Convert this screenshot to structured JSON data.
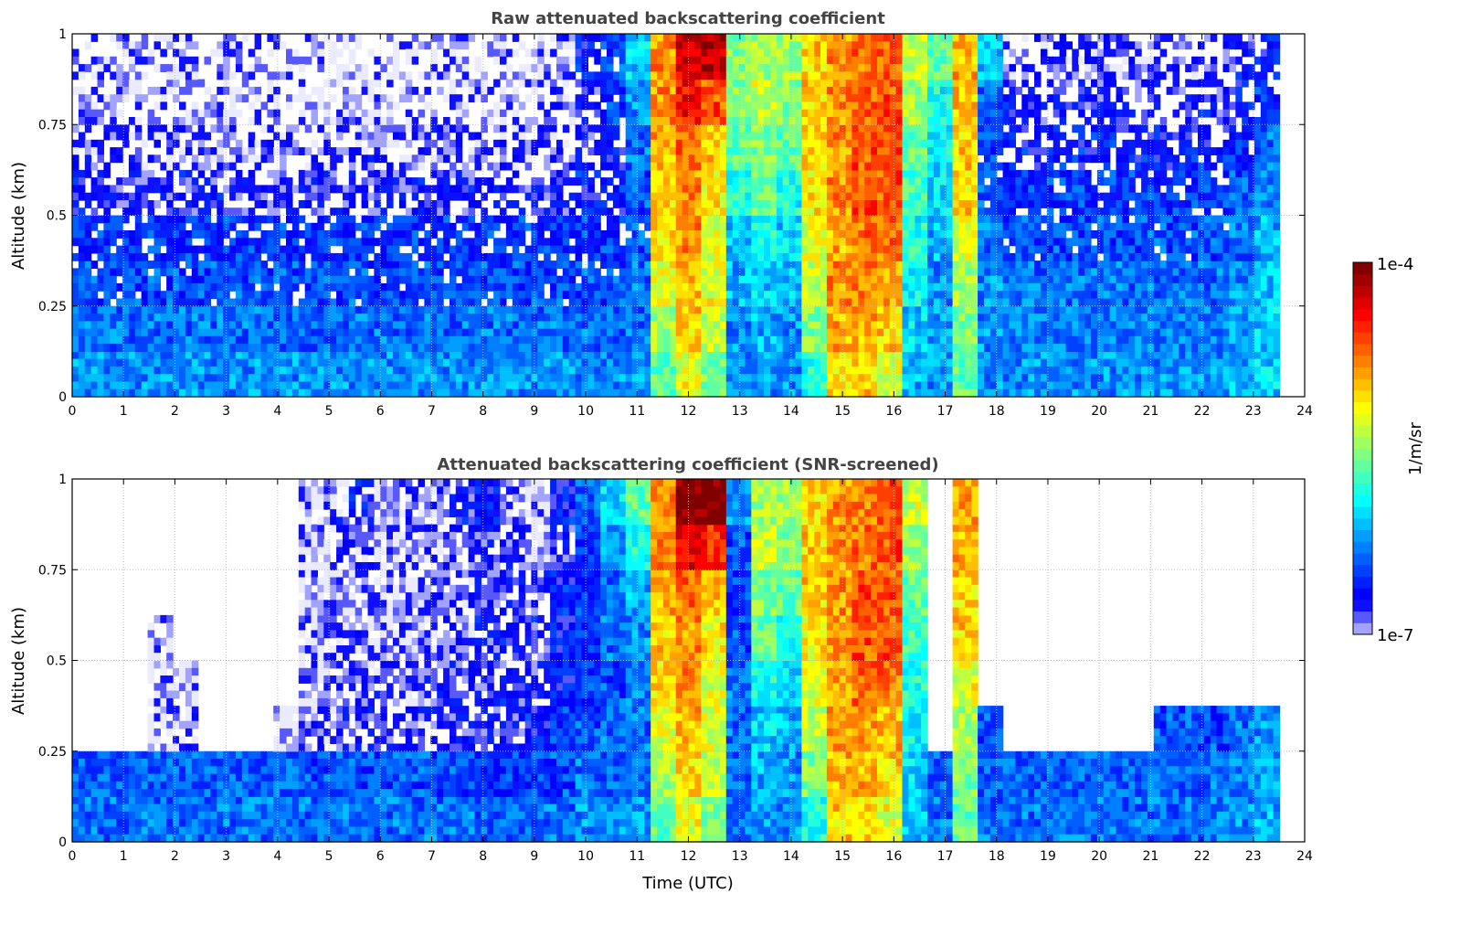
{
  "chart_data": {
    "type": "heatmap",
    "colormap": "jet",
    "value_scale": "log10",
    "colorbar": {
      "label": "1/m/sr",
      "min_label": "1e-7",
      "max_label": "1e-4",
      "vmin": -7,
      "vmax": -4
    },
    "xlabel": "Time (UTC)",
    "xlim": [
      0,
      24
    ],
    "xticks": [
      "0",
      "1",
      "2",
      "3",
      "4",
      "5",
      "6",
      "7",
      "8",
      "9",
      "10",
      "11",
      "12",
      "13",
      "14",
      "15",
      "16",
      "17",
      "18",
      "19",
      "20",
      "21",
      "22",
      "23",
      "24"
    ],
    "ylim": [
      0,
      1
    ],
    "yticks": [
      "0",
      "0.25",
      "0.5",
      "0.75",
      "1"
    ],
    "grid": true,
    "time_bin_hours": 0.5,
    "altitude_bin_km": 0.125,
    "panels": [
      {
        "title": "Raw attenuated backscattering coefficient",
        "ylabel": "Altitude (km)",
        "columns": [
          [
            -6.2,
            -6.3,
            -6.4,
            -6.5,
            -6.7,
            -6.8,
            -6.9,
            -6.9
          ],
          [
            -6.2,
            -6.3,
            -6.4,
            -6.5,
            -6.7,
            -6.8,
            -6.9,
            -6.9
          ],
          [
            -6.2,
            -6.3,
            -6.4,
            -6.5,
            -6.7,
            -6.8,
            -6.9,
            -6.9
          ],
          [
            -6.2,
            -6.3,
            -6.4,
            -6.5,
            -6.7,
            -6.8,
            -6.9,
            -6.9
          ],
          [
            -6.2,
            -6.3,
            -6.4,
            -6.5,
            -6.7,
            -6.8,
            -6.9,
            -6.9
          ],
          [
            -6.2,
            -6.3,
            -6.4,
            -6.5,
            -6.7,
            -6.8,
            -6.9,
            -6.9
          ],
          [
            -6.2,
            -6.3,
            -6.4,
            -6.5,
            -6.7,
            -6.8,
            -6.9,
            -6.9
          ],
          [
            -6.2,
            -6.3,
            -6.4,
            -6.5,
            -6.7,
            -6.8,
            -6.9,
            -6.9
          ],
          [
            -6.2,
            -6.3,
            -6.4,
            -6.5,
            -6.7,
            -6.8,
            -6.9,
            -6.9
          ],
          [
            -6.2,
            -6.3,
            -6.4,
            -6.5,
            -6.7,
            -6.8,
            -6.9,
            -6.9
          ],
          [
            -6.2,
            -6.3,
            -6.4,
            -6.5,
            -6.7,
            -6.8,
            -6.9,
            -6.9
          ],
          [
            -6.2,
            -6.3,
            -6.4,
            -6.5,
            -6.7,
            -6.8,
            -6.9,
            -6.9
          ],
          [
            -6.2,
            -6.3,
            -6.4,
            -6.5,
            -6.7,
            -6.8,
            -6.9,
            -6.9
          ],
          [
            -6.2,
            -6.3,
            -6.4,
            -6.5,
            -6.7,
            -6.8,
            -6.9,
            -6.9
          ],
          [
            -6.2,
            -6.3,
            -6.4,
            -6.5,
            -6.7,
            -6.8,
            -6.9,
            -6.9
          ],
          [
            -6.2,
            -6.3,
            -6.4,
            -6.5,
            -6.7,
            -6.8,
            -6.9,
            -6.9
          ],
          [
            -6.2,
            -6.3,
            -6.4,
            -6.5,
            -6.7,
            -6.8,
            -6.9,
            -6.9
          ],
          [
            -6.2,
            -6.3,
            -6.4,
            -6.5,
            -6.7,
            -6.8,
            -6.9,
            -6.9
          ],
          [
            -6.2,
            -6.3,
            -6.4,
            -6.5,
            -6.7,
            -6.8,
            -6.85,
            -6.85
          ],
          [
            -6.2,
            -6.3,
            -6.4,
            -6.5,
            -6.7,
            -6.8,
            -6.8,
            -6.8
          ],
          [
            -6.2,
            -6.3,
            -6.4,
            -6.5,
            -6.6,
            -6.7,
            -6.7,
            -6.6
          ],
          [
            -6.2,
            -6.3,
            -6.4,
            -6.5,
            -6.6,
            -6.6,
            -6.5,
            -6.4
          ],
          [
            -6.2,
            -6.3,
            -6.3,
            -6.4,
            -6.4,
            -6.3,
            -6.2,
            -6.0
          ],
          [
            -5.6,
            -5.4,
            -5.2,
            -5.0,
            -5.0,
            -4.9,
            -4.8,
            -4.8
          ],
          [
            -5.2,
            -5.0,
            -4.9,
            -4.8,
            -4.8,
            -4.7,
            -4.4,
            -4.2
          ],
          [
            -5.5,
            -5.3,
            -5.2,
            -5.2,
            -5.1,
            -5.0,
            -4.6,
            -4.2
          ],
          [
            -6.2,
            -6.2,
            -6.1,
            -6.0,
            -5.8,
            -5.6,
            -5.5,
            -5.5
          ],
          [
            -6.2,
            -6.1,
            -6.0,
            -5.8,
            -5.6,
            -5.5,
            -5.3,
            -5.4
          ],
          [
            -6.2,
            -6.2,
            -6.1,
            -6.0,
            -5.8,
            -5.6,
            -5.5,
            -5.4
          ],
          [
            -5.8,
            -5.5,
            -5.3,
            -5.2,
            -5.1,
            -5.0,
            -5.0,
            -5.0
          ],
          [
            -5.0,
            -4.9,
            -4.8,
            -4.9,
            -4.8,
            -4.8,
            -4.8,
            -4.8
          ],
          [
            -5.0,
            -4.9,
            -4.8,
            -4.7,
            -4.6,
            -4.6,
            -4.7,
            -4.7
          ],
          [
            -5.2,
            -5.0,
            -4.9,
            -4.7,
            -4.6,
            -4.6,
            -4.6,
            -4.6
          ],
          [
            -6.1,
            -6.0,
            -5.9,
            -5.8,
            -5.7,
            -5.6,
            -5.4,
            -5.3
          ],
          [
            -6.2,
            -6.2,
            -6.2,
            -6.1,
            -6.0,
            -5.9,
            -5.8,
            -5.6
          ],
          [
            -5.6,
            -5.5,
            -5.4,
            -5.2,
            -5.0,
            -5.0,
            -4.9,
            -4.9
          ],
          [
            -6.2,
            -6.2,
            -6.2,
            -6.3,
            -6.4,
            -6.4,
            -6.3,
            -6.0
          ],
          [
            -6.2,
            -6.25,
            -6.3,
            -6.4,
            -6.5,
            -6.6,
            -6.7,
            -6.8
          ],
          [
            -6.2,
            -6.25,
            -6.3,
            -6.4,
            -6.5,
            -6.6,
            -6.7,
            -6.8
          ],
          [
            -6.2,
            -6.25,
            -6.3,
            -6.4,
            -6.5,
            -6.6,
            -6.7,
            -6.8
          ],
          [
            -6.2,
            -6.25,
            -6.3,
            -6.4,
            -6.5,
            -6.6,
            -6.7,
            -6.8
          ],
          [
            -6.2,
            -6.25,
            -6.3,
            -6.4,
            -6.5,
            -6.6,
            -6.7,
            -6.8
          ],
          [
            -6.2,
            -6.25,
            -6.3,
            -6.4,
            -6.5,
            -6.6,
            -6.7,
            -6.8
          ],
          [
            -6.2,
            -6.25,
            -6.3,
            -6.4,
            -6.5,
            -6.6,
            -6.7,
            -6.8
          ],
          [
            -6.2,
            -6.25,
            -6.3,
            -6.4,
            -6.5,
            -6.6,
            -6.7,
            -6.8
          ],
          [
            -6.2,
            -6.25,
            -6.3,
            -6.4,
            -6.5,
            -6.6,
            -6.7,
            -6.8
          ],
          [
            -6.1,
            -6.15,
            -6.2,
            -6.3,
            -6.4,
            -6.5,
            -6.6,
            -6.7
          ],
          [
            -6.0,
            -6.0,
            -6.05,
            -6.1,
            -6.2,
            -6.3,
            -6.5,
            -6.6
          ],
          [
            null,
            null,
            null,
            null,
            null,
            null,
            null,
            null
          ]
        ]
      },
      {
        "title": "Attenuated backscattering coefficient (SNR-screened)",
        "ylabel": "Altitude (km)",
        "columns": [
          [
            -6.3,
            -6.35,
            null,
            null,
            null,
            null,
            null,
            null
          ],
          [
            -6.3,
            -6.35,
            null,
            null,
            null,
            null,
            null,
            null
          ],
          [
            -6.3,
            -6.35,
            null,
            null,
            null,
            null,
            null,
            null
          ],
          [
            -6.3,
            -6.35,
            -6.9,
            -6.95,
            -6.95,
            null,
            null,
            null
          ],
          [
            -6.3,
            -6.35,
            -6.85,
            -6.95,
            null,
            null,
            null,
            null
          ],
          [
            -6.3,
            -6.35,
            null,
            null,
            null,
            null,
            null,
            null
          ],
          [
            -6.3,
            -6.35,
            null,
            null,
            null,
            null,
            null,
            null
          ],
          [
            -6.3,
            -6.35,
            null,
            null,
            null,
            null,
            null,
            null
          ],
          [
            -6.3,
            -6.35,
            -6.95,
            null,
            null,
            null,
            null,
            null
          ],
          [
            -6.3,
            -6.4,
            -6.8,
            -6.85,
            -6.9,
            -6.95,
            -6.9,
            -6.9
          ],
          [
            -6.3,
            -6.4,
            -6.75,
            -6.8,
            -6.85,
            -6.9,
            -6.85,
            -6.8
          ],
          [
            -6.3,
            -6.4,
            -6.75,
            -6.8,
            -6.85,
            -6.9,
            -6.8,
            -6.7
          ],
          [
            -6.3,
            -6.4,
            -6.75,
            -6.8,
            -6.85,
            -6.9,
            -6.9,
            -6.9
          ],
          [
            -6.3,
            -6.4,
            -6.75,
            -6.8,
            -6.85,
            -6.9,
            -6.9,
            -6.8
          ],
          [
            -6.3,
            -6.4,
            -6.7,
            -6.75,
            -6.8,
            -6.85,
            -6.85,
            -6.8
          ],
          [
            -6.3,
            -6.4,
            -6.7,
            -6.7,
            -6.75,
            -6.8,
            -6.8,
            -6.7
          ],
          [
            -6.35,
            -6.45,
            -6.7,
            -6.7,
            -6.7,
            -6.75,
            -6.75,
            -6.6
          ],
          [
            -6.35,
            -6.5,
            -6.7,
            -6.7,
            -6.7,
            -6.7,
            -6.7,
            -6.8
          ],
          [
            -6.3,
            -6.45,
            -6.6,
            -6.7,
            -6.7,
            -6.8,
            -6.9,
            -6.95
          ],
          [
            -6.3,
            -6.4,
            -6.5,
            -6.6,
            -6.6,
            -6.6,
            -6.7,
            -6.6
          ],
          [
            -6.2,
            -6.3,
            -6.4,
            -6.5,
            -6.5,
            -6.5,
            -6.5,
            -6.4
          ],
          [
            -6.2,
            -6.3,
            -6.3,
            -6.4,
            -6.3,
            -6.3,
            -6.2,
            -6.0
          ],
          [
            -6.2,
            -6.3,
            -6.3,
            -6.3,
            -6.2,
            -6.1,
            -5.8,
            -5.6
          ],
          [
            -5.6,
            -5.4,
            -5.2,
            -5.0,
            -5.0,
            -4.9,
            -4.8,
            -4.8
          ],
          [
            -5.2,
            -5.0,
            -4.9,
            -4.8,
            -4.8,
            -4.7,
            -4.3,
            -4.0
          ],
          [
            -5.5,
            -5.3,
            -5.2,
            -5.2,
            -5.1,
            -5.0,
            -4.5,
            -4.0
          ],
          [
            -6.3,
            -6.3,
            -6.3,
            -6.3,
            -6.4,
            -6.5,
            -6.4,
            -6.2
          ],
          [
            -6.2,
            -6.1,
            -6.0,
            -5.8,
            -5.6,
            -5.5,
            -5.3,
            -5.4
          ],
          [
            -6.2,
            -6.2,
            -6.1,
            -6.0,
            -5.8,
            -5.6,
            -5.5,
            -5.4
          ],
          [
            -5.8,
            -5.5,
            -5.3,
            -5.2,
            -5.1,
            -5.0,
            -5.0,
            -5.0
          ],
          [
            -5.0,
            -4.9,
            -4.8,
            -4.9,
            -4.8,
            -4.8,
            -4.8,
            -4.8
          ],
          [
            -5.0,
            -4.9,
            -4.8,
            -4.7,
            -4.6,
            -4.6,
            -4.7,
            -4.7
          ],
          [
            -5.2,
            -5.0,
            -4.9,
            -4.7,
            -4.6,
            -4.6,
            -4.6,
            -4.6
          ],
          [
            -6.1,
            -6.0,
            -5.9,
            -5.8,
            -5.7,
            -5.6,
            -5.4,
            -5.3
          ],
          [
            -6.3,
            -6.35,
            null,
            null,
            null,
            null,
            null,
            null
          ],
          [
            -5.6,
            -5.5,
            -5.4,
            -5.2,
            -5.0,
            -5.0,
            -4.9,
            -4.9
          ],
          [
            -6.3,
            -6.35,
            -6.4,
            null,
            null,
            null,
            null,
            null
          ],
          [
            -6.3,
            -6.35,
            null,
            null,
            null,
            null,
            null,
            null
          ],
          [
            -6.3,
            -6.35,
            null,
            null,
            null,
            null,
            null,
            null
          ],
          [
            -6.3,
            -6.35,
            null,
            null,
            null,
            null,
            null,
            null
          ],
          [
            -6.3,
            -6.35,
            null,
            null,
            null,
            null,
            null,
            null
          ],
          [
            -6.3,
            -6.35,
            null,
            null,
            null,
            null,
            null,
            null
          ],
          [
            -6.3,
            -6.35,
            null,
            null,
            null,
            null,
            null,
            null
          ],
          [
            -6.3,
            -6.35,
            -6.4,
            null,
            null,
            null,
            null,
            null
          ],
          [
            -6.3,
            -6.35,
            -6.4,
            null,
            null,
            null,
            null,
            null
          ],
          [
            -6.25,
            -6.3,
            -6.4,
            null,
            null,
            null,
            null,
            null
          ],
          [
            -6.2,
            -6.25,
            -6.3,
            null,
            null,
            null,
            null,
            null
          ],
          [
            -6.1,
            -6.15,
            -6.2,
            null,
            null,
            null,
            null,
            null
          ],
          [
            null,
            null,
            null,
            null,
            null,
            null,
            null,
            null
          ]
        ]
      }
    ]
  }
}
